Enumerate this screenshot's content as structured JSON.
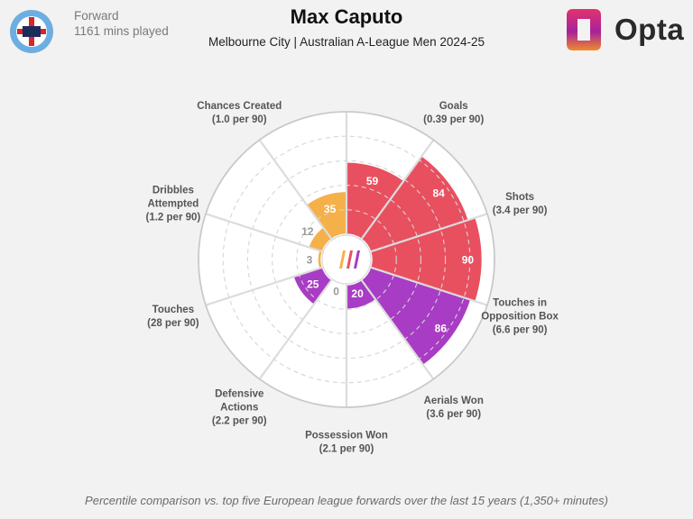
{
  "header": {
    "position": "Forward",
    "minutes": "1161 mins played",
    "player_name": "Max Caputo",
    "subtitle": "Melbourne City | Australian A-League Men 2024-25",
    "brand": "Opta"
  },
  "footnote": "Percentile comparison vs. top five European league forwards over the last 15 years (1,350+ minutes)",
  "colors": {
    "attacking": "#e8505f",
    "possession": "#f5b04a",
    "defending": "#a83cc4",
    "background": "#f2f2f2"
  },
  "chart_data": {
    "type": "polar-bar",
    "title": "Max Caputo",
    "subtitle": "Melbourne City | Australian A-League Men 2024-25",
    "rlim": [
      0,
      100
    ],
    "gridlines": [
      20,
      40,
      60,
      80
    ],
    "series": [
      {
        "name": "Goals",
        "per90": "(0.39 per 90)",
        "value": 59,
        "group": "attacking"
      },
      {
        "name": "Shots",
        "per90": "(3.4 per 90)",
        "value": 84,
        "group": "attacking"
      },
      {
        "name": "Touches in Opposition Box",
        "per90": "(6.6 per 90)",
        "value": 90,
        "group": "attacking"
      },
      {
        "name": "Aerials Won",
        "per90": "(3.6 per 90)",
        "value": 86,
        "group": "defending"
      },
      {
        "name": "Possession Won",
        "per90": "(2.1 per 90)",
        "value": 20,
        "group": "defending"
      },
      {
        "name": "Defensive Actions",
        "per90": "(2.2 per 90)",
        "value": 0,
        "group": "defending"
      },
      {
        "name": "Touches",
        "per90": "(28 per 90)",
        "value": 25,
        "group": "defending"
      },
      {
        "name": "Dribbles Attempted",
        "per90": "(1.2 per 90)",
        "value": 3,
        "group": "possession"
      },
      {
        "name": "Chances Created",
        "per90": "(1.0 per 90)",
        "value": 12,
        "group": "possession"
      },
      {
        "name": "",
        "per90": "",
        "value": 35,
        "group": "possession"
      }
    ]
  }
}
